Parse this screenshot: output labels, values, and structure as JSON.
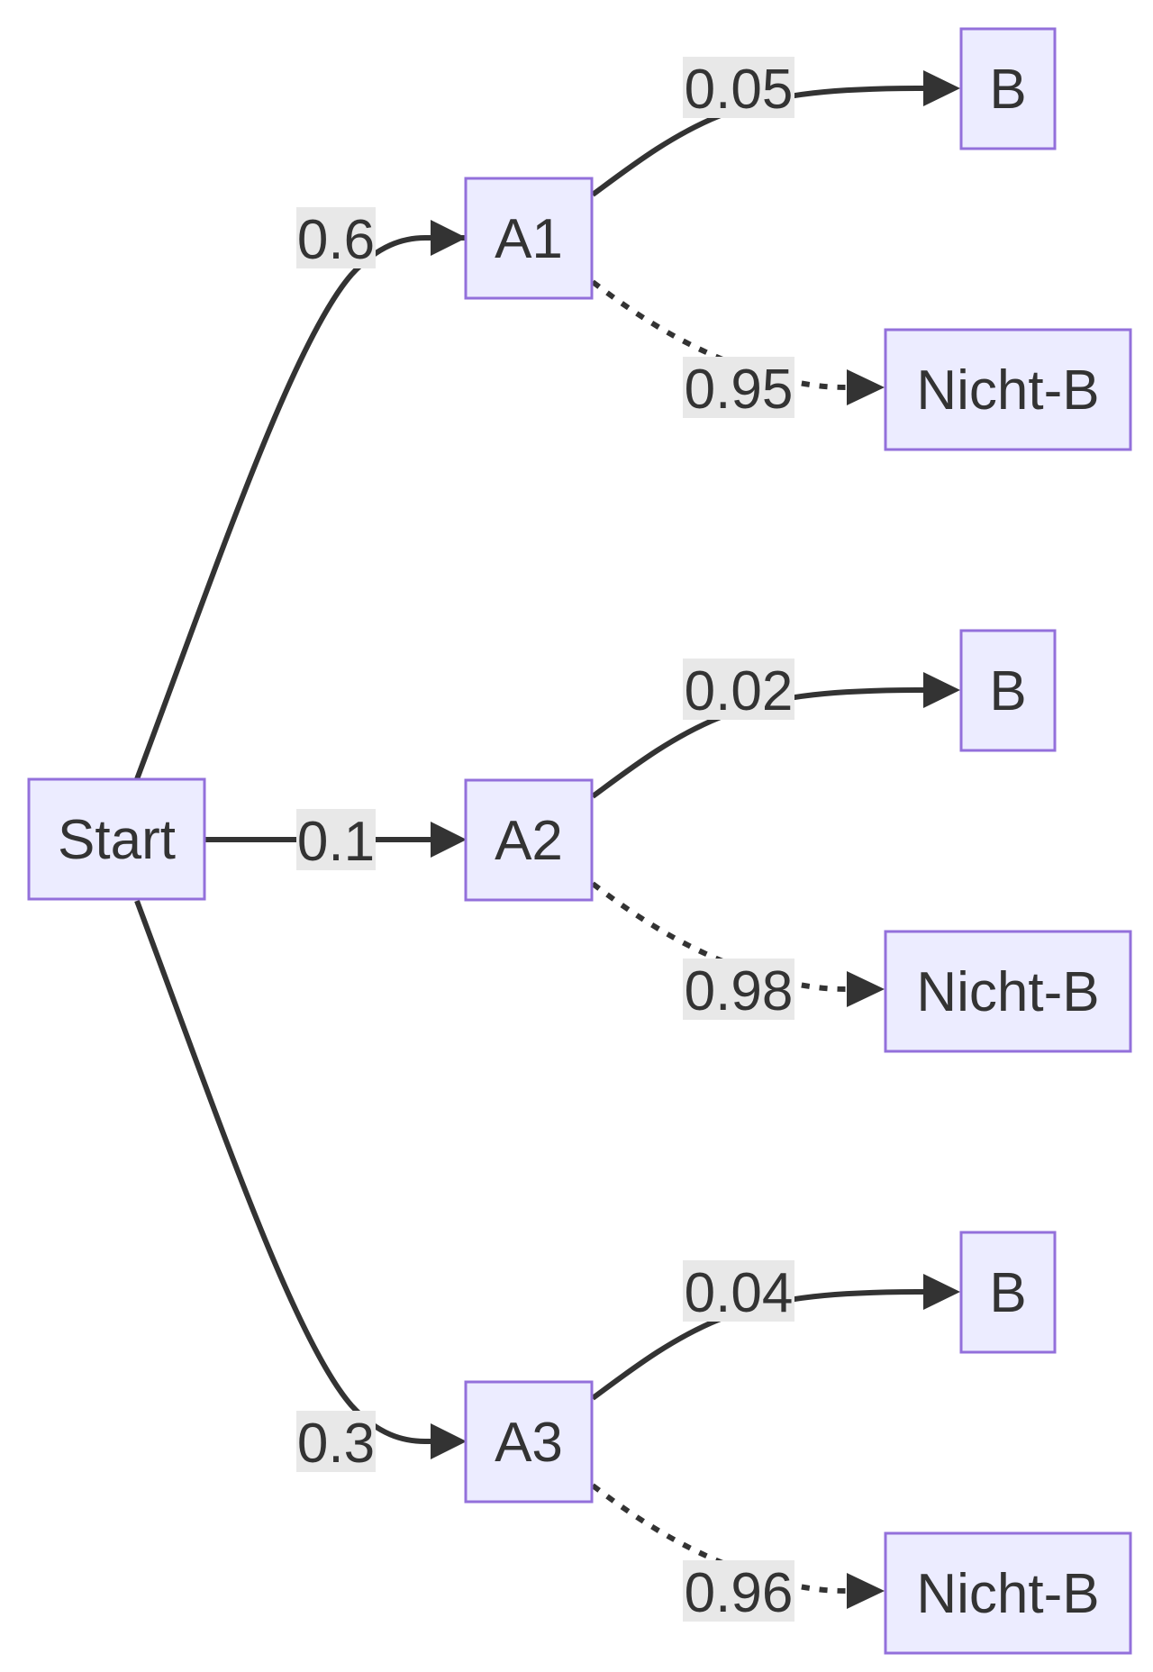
{
  "diagram": {
    "nodes": [
      {
        "id": "start",
        "label": "Start"
      },
      {
        "id": "a1",
        "label": "A1"
      },
      {
        "id": "a2",
        "label": "A2"
      },
      {
        "id": "a3",
        "label": "A3"
      },
      {
        "id": "a1_b",
        "label": "B"
      },
      {
        "id": "a1_nb",
        "label": "Nicht-B"
      },
      {
        "id": "a2_b",
        "label": "B"
      },
      {
        "id": "a2_nb",
        "label": "Nicht-B"
      },
      {
        "id": "a3_b",
        "label": "B"
      },
      {
        "id": "a3_nb",
        "label": "Nicht-B"
      }
    ],
    "edges": [
      {
        "from": "start",
        "to": "a1",
        "label": "0.6",
        "style": "solid"
      },
      {
        "from": "start",
        "to": "a2",
        "label": "0.1",
        "style": "solid"
      },
      {
        "from": "start",
        "to": "a3",
        "label": "0.3",
        "style": "solid"
      },
      {
        "from": "a1",
        "to": "a1_b",
        "label": "0.05",
        "style": "solid"
      },
      {
        "from": "a1",
        "to": "a1_nb",
        "label": "0.95",
        "style": "dotted"
      },
      {
        "from": "a2",
        "to": "a2_b",
        "label": "0.02",
        "style": "solid"
      },
      {
        "from": "a2",
        "to": "a2_nb",
        "label": "0.98",
        "style": "dotted"
      },
      {
        "from": "a3",
        "to": "a3_b",
        "label": "0.04",
        "style": "solid"
      },
      {
        "from": "a3",
        "to": "a3_nb",
        "label": "0.96",
        "style": "dotted"
      }
    ],
    "colors": {
      "node_fill": "#ececff",
      "node_stroke": "#9370db",
      "edge": "#333333",
      "label_bg": "#e8e8e8",
      "text": "#333333"
    }
  }
}
